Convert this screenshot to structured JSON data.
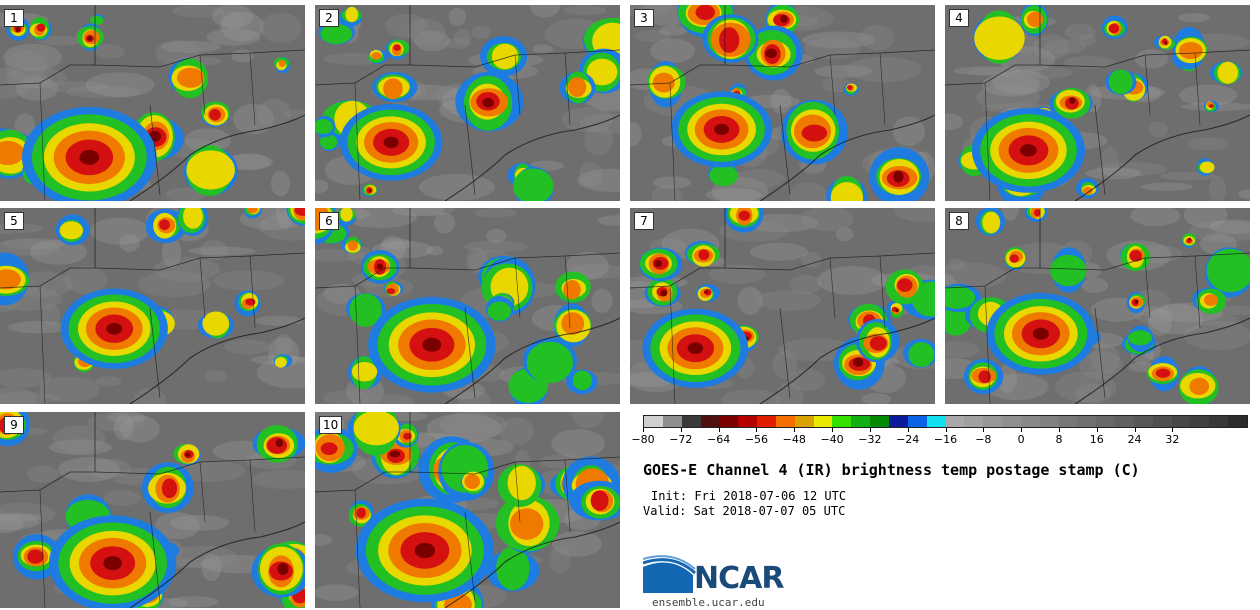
{
  "panels": [
    "1",
    "2",
    "3",
    "4",
    "5",
    "6",
    "7",
    "8",
    "9",
    "10"
  ],
  "colorbar": {
    "colors": [
      "#d0d0d0",
      "#8e8e8e",
      "#3a3a3a",
      "#501010",
      "#7a0000",
      "#b50000",
      "#e21e00",
      "#f56e00",
      "#d8a200",
      "#e8e800",
      "#33e000",
      "#12b012",
      "#058a05",
      "#0a1a9a",
      "#0a64e6",
      "#10e0f0",
      "#a8a8a8",
      "#a0a0a0",
      "#989898",
      "#909090",
      "#888888",
      "#808080",
      "#787878",
      "#707070",
      "#686868",
      "#606060",
      "#585858",
      "#505050",
      "#484848",
      "#404040",
      "#383838",
      "#2c2c2c"
    ],
    "ticks": [
      "−80",
      "−72",
      "−64",
      "−56",
      "−48",
      "−40",
      "−32",
      "−24",
      "−16",
      "−8",
      "0",
      "8",
      "16",
      "24",
      "32"
    ]
  },
  "title": "GOES-E Channel 4 (IR) brightness temp postage stamp (C)",
  "init": "Init: Fri 2018-07-06 12 UTC",
  "valid": "Valid: Sat 2018-07-07 05 UTC",
  "logo": "NCAR",
  "url": "ensemble.ucar.edu",
  "map_colors": {
    "background": "#6e6e6e",
    "land_light": "#8a8a8a",
    "storm_outer": "#1e7be0",
    "storm_green": "#22c022",
    "storm_yellow": "#e8d800",
    "storm_orange": "#f07a00",
    "storm_red": "#d41010",
    "storm_core": "#7a0000",
    "border": "#1a1a1a"
  }
}
